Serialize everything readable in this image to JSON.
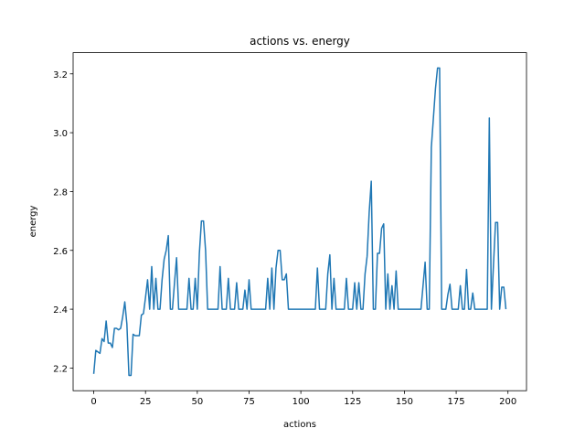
{
  "chart_data": {
    "type": "line",
    "title": "actions vs. energy",
    "xlabel": "actions",
    "ylabel": "energy",
    "x": [
      0,
      1,
      2,
      3,
      4,
      5,
      6,
      7,
      8,
      9,
      10,
      11,
      12,
      13,
      14,
      15,
      16,
      17,
      18,
      19,
      20,
      21,
      22,
      23,
      24,
      25,
      26,
      27,
      28,
      29,
      30,
      31,
      32,
      33,
      34,
      35,
      36,
      37,
      38,
      39,
      40,
      41,
      42,
      43,
      44,
      45,
      46,
      47,
      48,
      49,
      50,
      51,
      52,
      53,
      54,
      55,
      56,
      57,
      58,
      59,
      60,
      61,
      62,
      63,
      64,
      65,
      66,
      67,
      68,
      69,
      70,
      71,
      72,
      73,
      74,
      75,
      76,
      77,
      78,
      79,
      80,
      81,
      82,
      83,
      84,
      85,
      86,
      87,
      88,
      89,
      90,
      91,
      92,
      93,
      94,
      95,
      96,
      97,
      98,
      99,
      100,
      101,
      102,
      103,
      104,
      105,
      106,
      107,
      108,
      109,
      110,
      111,
      112,
      113,
      114,
      115,
      116,
      117,
      118,
      119,
      120,
      121,
      122,
      123,
      124,
      125,
      126,
      127,
      128,
      129,
      130,
      131,
      132,
      133,
      134,
      135,
      136,
      137,
      138,
      139,
      140,
      141,
      142,
      143,
      144,
      145,
      146,
      147,
      148,
      149,
      150,
      151,
      152,
      153,
      154,
      155,
      156,
      157,
      158,
      159,
      160,
      161,
      162,
      163,
      164,
      165,
      166,
      167,
      168,
      169,
      170,
      171,
      172,
      173,
      174,
      175,
      176,
      177,
      178,
      179,
      180,
      181,
      182,
      183,
      184,
      185,
      186,
      187,
      188,
      189,
      190,
      191,
      192,
      193,
      194,
      195,
      196,
      197,
      198,
      199
    ],
    "series": [
      {
        "name": "energy",
        "color": "#1f77b4",
        "values": [
          2.18,
          2.26,
          2.255,
          2.25,
          2.3,
          2.29,
          2.36,
          2.285,
          2.285,
          2.27,
          2.335,
          2.335,
          2.33,
          2.335,
          2.375,
          2.425,
          2.35,
          2.175,
          2.175,
          2.315,
          2.31,
          2.31,
          2.31,
          2.38,
          2.385,
          2.44,
          2.5,
          2.4,
          2.545,
          2.4,
          2.505,
          2.4,
          2.4,
          2.5,
          2.57,
          2.6,
          2.65,
          2.4,
          2.4,
          2.49,
          2.575,
          2.4,
          2.4,
          2.4,
          2.4,
          2.4,
          2.505,
          2.4,
          2.4,
          2.505,
          2.4,
          2.59,
          2.7,
          2.7,
          2.6,
          2.4,
          2.4,
          2.4,
          2.4,
          2.4,
          2.4,
          2.545,
          2.4,
          2.4,
          2.4,
          2.505,
          2.4,
          2.4,
          2.4,
          2.49,
          2.4,
          2.4,
          2.4,
          2.465,
          2.4,
          2.5,
          2.4,
          2.4,
          2.4,
          2.4,
          2.4,
          2.4,
          2.4,
          2.4,
          2.505,
          2.4,
          2.54,
          2.4,
          2.54,
          2.6,
          2.6,
          2.5,
          2.5,
          2.52,
          2.4,
          2.4,
          2.4,
          2.4,
          2.4,
          2.4,
          2.4,
          2.4,
          2.4,
          2.4,
          2.4,
          2.4,
          2.4,
          2.4,
          2.54,
          2.4,
          2.4,
          2.4,
          2.4,
          2.52,
          2.585,
          2.4,
          2.505,
          2.4,
          2.4,
          2.4,
          2.4,
          2.4,
          2.505,
          2.4,
          2.4,
          2.4,
          2.49,
          2.4,
          2.49,
          2.4,
          2.4,
          2.52,
          2.58,
          2.73,
          2.835,
          2.4,
          2.4,
          2.59,
          2.59,
          2.675,
          2.69,
          2.4,
          2.52,
          2.4,
          2.48,
          2.4,
          2.53,
          2.4,
          2.4,
          2.4,
          2.4,
          2.4,
          2.4,
          2.4,
          2.4,
          2.4,
          2.4,
          2.4,
          2.4,
          2.48,
          2.56,
          2.4,
          2.4,
          2.95,
          3.05,
          3.15,
          3.22,
          3.22,
          2.4,
          2.4,
          2.4,
          2.45,
          2.485,
          2.4,
          2.4,
          2.4,
          2.4,
          2.48,
          2.4,
          2.4,
          2.535,
          2.4,
          2.4,
          2.455,
          2.4,
          2.4,
          2.4,
          2.4,
          2.4,
          2.4,
          2.4,
          3.05,
          2.4,
          2.55,
          2.695,
          2.695,
          2.4,
          2.475,
          2.475,
          2.4
        ]
      }
    ],
    "xlim": [
      -9.95,
      208.95
    ],
    "ylim": [
      2.123,
      3.272
    ],
    "xticks": [
      0,
      25,
      50,
      75,
      100,
      125,
      150,
      175,
      200
    ],
    "yticks": [
      {
        "value": 2.2,
        "label": "2.2"
      },
      {
        "value": 2.4,
        "label": "2.4"
      },
      {
        "value": 2.6,
        "label": "2.6"
      },
      {
        "value": 2.8,
        "label": "2.8"
      },
      {
        "value": 3.0,
        "label": "3.0"
      },
      {
        "value": 3.2,
        "label": "3.2"
      }
    ]
  }
}
